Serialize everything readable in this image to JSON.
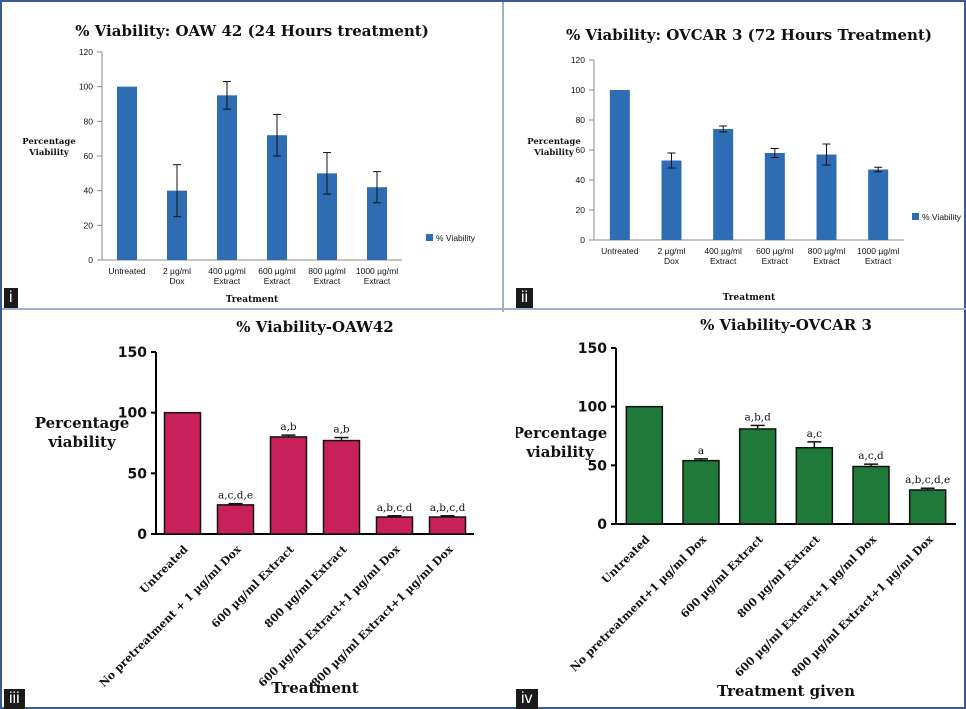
{
  "chart_data": [
    {
      "panel": "i",
      "type": "bar",
      "title": "% Viability: OAW 42 (24 Hours treatment)",
      "xlabel": "Treatment",
      "ylabel": "Percentage Viability",
      "ylim": [
        0,
        120
      ],
      "yticks": [
        0,
        20,
        40,
        60,
        80,
        100,
        120
      ],
      "categories": [
        "Untreated",
        "2 µg/ml Dox",
        "400 µg/ml Extract",
        "600 µg/ml Extract",
        "800 µg/ml Extract",
        "1000 µg/ml Extract"
      ],
      "series": [
        {
          "name": "% Viability",
          "values": [
            100,
            40,
            95,
            72,
            50,
            42
          ],
          "errors": [
            0,
            15,
            8,
            12,
            12,
            9
          ]
        }
      ],
      "legend_position": "right",
      "grid": false,
      "color": "#2e6db4"
    },
    {
      "panel": "ii",
      "type": "bar",
      "title": "% Viability: OVCAR 3 (72 Hours Treatment)",
      "xlabel": "Treatment",
      "ylabel": "Percentage Viability",
      "ylim": [
        0,
        120
      ],
      "yticks": [
        0,
        20,
        40,
        60,
        80,
        100,
        120
      ],
      "categories": [
        "Untreated",
        "2 µg/ml Dox",
        "400 µg/ml Extract",
        "600 µg/ml Extract",
        "800 µg/ml Extract",
        "1000 µg/ml Extract"
      ],
      "series": [
        {
          "name": "% Viability",
          "values": [
            100,
            53,
            74,
            58,
            57,
            47
          ],
          "errors": [
            0,
            5,
            2,
            3,
            7,
            1.5
          ]
        }
      ],
      "legend_position": "right",
      "grid": false,
      "color": "#2e6db4"
    },
    {
      "panel": "iii",
      "type": "bar",
      "title": "% Viability-OAW42",
      "xlabel": "Treatment",
      "ylabel": "Percentage viability",
      "ylim": [
        0,
        150
      ],
      "yticks": [
        0,
        50,
        100,
        150
      ],
      "categories": [
        "Untreated",
        "No pretreatment + 1 µg/ml Dox",
        "600 µg/ml Extract",
        "800 µg/ml Extract",
        "600 µg/ml Extract+1 µg/ml Dox",
        "800 µg/ml Extract+1 µg/ml Dox"
      ],
      "series": [
        {
          "values": [
            100,
            24,
            80,
            77,
            14,
            14
          ],
          "errors": [
            0,
            1,
            1.5,
            2.5,
            1,
            1
          ]
        }
      ],
      "annotations": [
        "",
        "a,c,d,e",
        "a,b",
        "a,b",
        "a,b,c,d",
        "a,b,c,d"
      ],
      "grid": false,
      "color": "#c8205a"
    },
    {
      "panel": "iv",
      "type": "bar",
      "title": "% Viability-OVCAR 3",
      "xlabel": "Treatment given",
      "ylabel": "Percentage viability",
      "ylim": [
        0,
        150
      ],
      "yticks": [
        0,
        50,
        100,
        150
      ],
      "categories": [
        "Untreated",
        "No pretreatment+1 µg/ml Dox",
        "600 µg/ml Extract",
        "800 µg/ml Extract",
        "600 µg/ml Extract+1 µg/ml Dox",
        "800 µg/ml Extract+1 µg/ml Dox"
      ],
      "series": [
        {
          "values": [
            100,
            54,
            81,
            65,
            49,
            29
          ],
          "errors": [
            0,
            1.5,
            3,
            5,
            2,
            1.5
          ]
        }
      ],
      "annotations": [
        "",
        "a",
        "a,b,d",
        "a,c",
        "a,c,d",
        "a,b,c,d,e"
      ],
      "grid": false,
      "color": "#1f7a3a"
    }
  ],
  "panel_labels": [
    "i",
    "ii",
    "iii",
    "iv"
  ]
}
